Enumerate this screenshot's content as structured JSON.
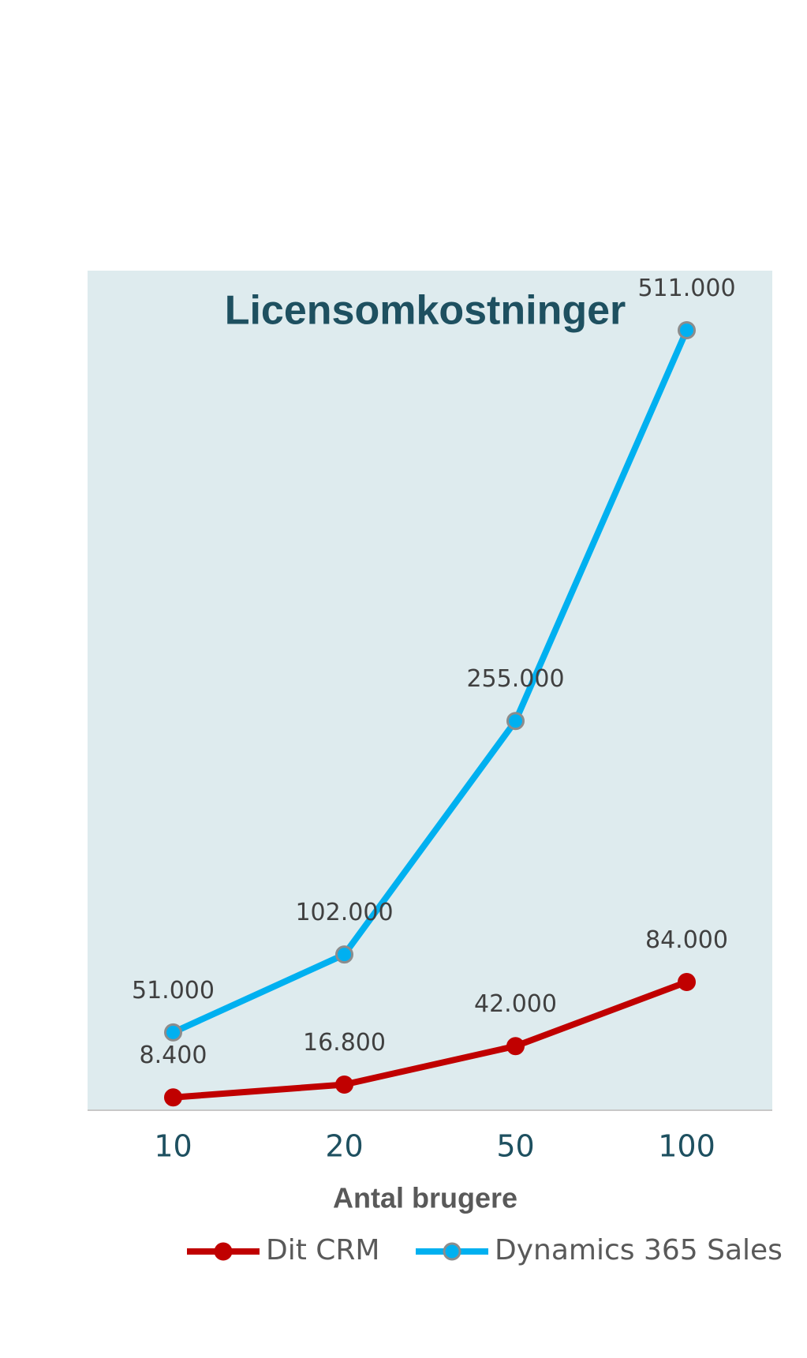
{
  "chart_data": {
    "type": "line",
    "title": "Licensomkostninger",
    "x_label": "Antal brugere",
    "categories": [
      "10",
      "20",
      "50",
      "100"
    ],
    "series": [
      {
        "name": "Dit CRM",
        "color": "#c00000",
        "values": [
          8400,
          16800,
          42000,
          84000
        ],
        "value_labels": [
          "8.400",
          "16.800",
          "42.000",
          "84.000"
        ]
      },
      {
        "name": "Dynamics 365 Sales",
        "color": "#00b0f0",
        "values": [
          51000,
          102000,
          255000,
          511000
        ],
        "value_labels": [
          "51.000",
          "102.000",
          "255.000",
          "511.000"
        ]
      }
    ],
    "ylim": [
      0,
      550000
    ],
    "legend": "bottom"
  }
}
